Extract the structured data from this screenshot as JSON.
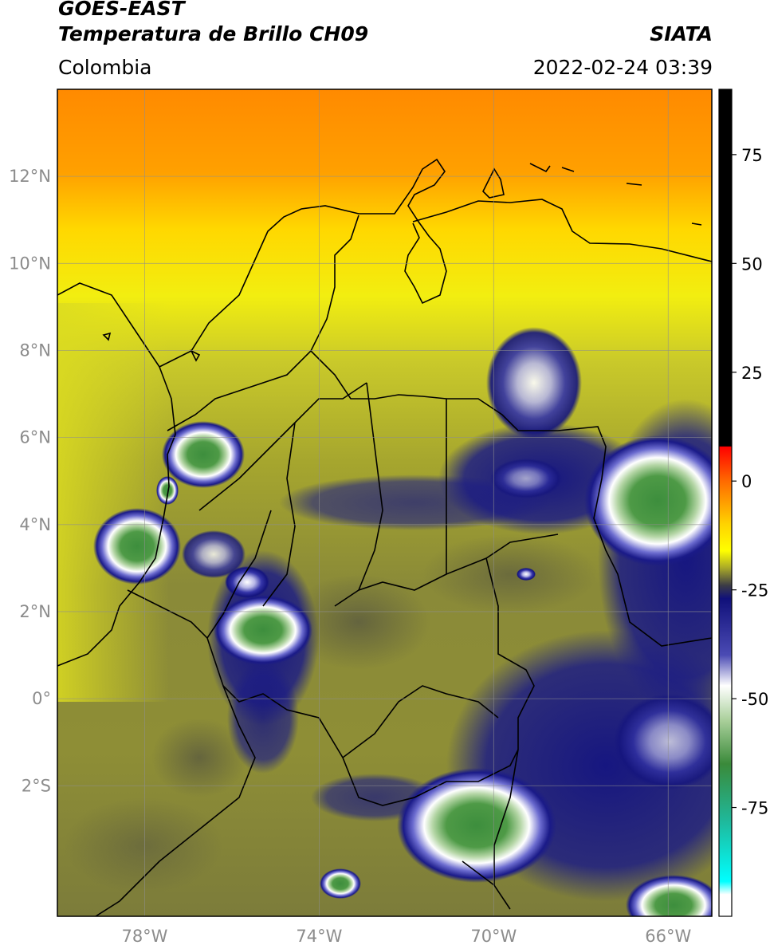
{
  "header": {
    "satellite": "GOES-EAST",
    "product": "Temperatura de Brillo CH09",
    "brand": "SIATA",
    "region": "Colombia",
    "datetime": "2022-02-24 03:39"
  },
  "map": {
    "lon_range": [
      -80,
      -65
    ],
    "lat_range": [
      -5,
      14
    ],
    "lat_ticks": [
      {
        "lat": 12,
        "label": "12°N"
      },
      {
        "lat": 10,
        "label": "10°N"
      },
      {
        "lat": 8,
        "label": "8°N"
      },
      {
        "lat": 6,
        "label": "6°N"
      },
      {
        "lat": 4,
        "label": "4°N"
      },
      {
        "lat": 2,
        "label": "2°N"
      },
      {
        "lat": 0,
        "label": "0°"
      },
      {
        "lat": -2,
        "label": "2°S"
      }
    ],
    "lon_ticks": [
      {
        "lon": -78,
        "label": "78°W"
      },
      {
        "lon": -74,
        "label": "74°W"
      },
      {
        "lon": -70,
        "label": "70°W"
      },
      {
        "lon": -66,
        "label": "66°W"
      }
    ],
    "gridlines": true
  },
  "colorbar": {
    "range": [
      -100,
      90
    ],
    "ticks": [
      {
        "value": 75,
        "label": "75"
      },
      {
        "value": 50,
        "label": "50"
      },
      {
        "value": 25,
        "label": "25"
      },
      {
        "value": 0,
        "label": "0"
      },
      {
        "value": -25,
        "label": "-25"
      },
      {
        "value": -50,
        "label": "-50"
      },
      {
        "value": -75,
        "label": "-75"
      }
    ],
    "stops": [
      {
        "value": 90,
        "color": "#000000"
      },
      {
        "value": 8,
        "color": "#000000"
      },
      {
        "value": 7.9,
        "color": "#ff0000"
      },
      {
        "value": 0,
        "color": "#ff6a00"
      },
      {
        "value": -10,
        "color": "#ffd400"
      },
      {
        "value": -16,
        "color": "#ffff00"
      },
      {
        "value": -20,
        "color": "#a8a828"
      },
      {
        "value": -24,
        "color": "#3c3c46"
      },
      {
        "value": -27,
        "color": "#10107a"
      },
      {
        "value": -40,
        "color": "#4b4bb4"
      },
      {
        "value": -47,
        "color": "#ffffff"
      },
      {
        "value": -55,
        "color": "#a9cf9a"
      },
      {
        "value": -65,
        "color": "#3a8a3a"
      },
      {
        "value": -78,
        "color": "#1fb89a"
      },
      {
        "value": -92,
        "color": "#00ffff"
      },
      {
        "value": -95,
        "color": "#ffffff"
      },
      {
        "value": -100,
        "color": "#ffffff"
      }
    ]
  }
}
